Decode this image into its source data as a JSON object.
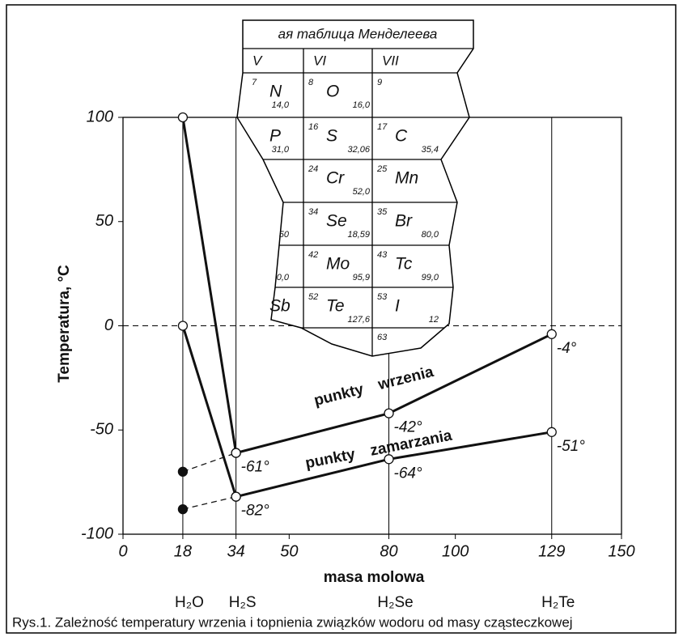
{
  "chart_data": {
    "type": "line",
    "ylabel": "Temperatura, °C",
    "xlabel": "masa molowa",
    "xlim": [
      0,
      150
    ],
    "xticks": [
      0,
      18,
      34,
      50,
      80,
      100,
      129,
      150
    ],
    "ylim": [
      -100,
      100
    ],
    "yticks": [
      -100,
      -50,
      0,
      50,
      100
    ],
    "compounds": [
      "H₂O",
      "H₂S",
      "H₂Se",
      "H₂Te"
    ],
    "series": [
      {
        "name": "punkty wrzenia",
        "color": "#111",
        "x": [
          18,
          34,
          80,
          129
        ],
        "values": [
          100,
          -61,
          -42,
          -4
        ],
        "value_labels": [
          null,
          "-61°",
          "-42°",
          "-4°"
        ]
      },
      {
        "name": "punkty zamarzania",
        "color": "#111",
        "x": [
          18,
          34,
          80,
          129
        ],
        "values": [
          0,
          -82,
          -64,
          -51
        ],
        "value_labels": [
          null,
          "-82°",
          "-64°",
          "-51°"
        ]
      },
      {
        "color": "#111",
        "dashed": true,
        "x": [
          18,
          34
        ],
        "values": [
          -70,
          -61
        ]
      },
      {
        "color": "#111",
        "dashed": true,
        "x": [
          18,
          34
        ],
        "values": [
          -88,
          -82
        ]
      }
    ]
  },
  "inset": {
    "title": "ая таблица Менделеева",
    "groups": [
      "V",
      "VI",
      "VII"
    ],
    "rows": [
      [
        {
          "n": "7",
          "s": "N",
          "m": "14,0"
        },
        {
          "n": "8",
          "s": "O",
          "m": "16,0"
        },
        {
          "n": "9"
        }
      ],
      [
        {
          "s": "P",
          "m": "31,0"
        },
        {
          "n": "16",
          "s": "S",
          "m": "32,06"
        },
        {
          "n": "17",
          "s": "C",
          "m": "35,4"
        }
      ],
      [
        null,
        {
          "n": "24",
          "s": "Cr",
          "m": "52,0"
        },
        {
          "n": "25",
          "s": "Mn"
        }
      ],
      [
        {
          "m": "50"
        },
        {
          "n": "34",
          "s": "Se",
          "m": "18,59"
        },
        {
          "n": "35",
          "s": "Br",
          "m": "80,0"
        }
      ],
      [
        {
          "m": "0,0"
        },
        {
          "n": "42",
          "s": "Mo",
          "m": "95,9"
        },
        {
          "n": "43",
          "s": "Tc",
          "m": "99,0"
        }
      ],
      [
        {
          "s": "Sb"
        },
        {
          "n": "52",
          "s": "Te",
          "m": "127,6"
        },
        {
          "n": "53",
          "s": "I",
          "m": "12"
        }
      ],
      [
        null,
        null,
        {
          "n": "63"
        }
      ]
    ]
  },
  "caption": "Rys.1. Zależność temperatury wrzenia i topnienia związków wodoru od masy cząsteczkowej"
}
